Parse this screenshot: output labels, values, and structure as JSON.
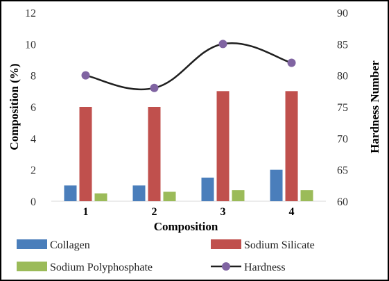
{
  "chart_data": {
    "type": "bar",
    "categories": [
      "1",
      "2",
      "3",
      "4"
    ],
    "xlabel": "Composition",
    "ylabel": "Composition (%)",
    "y2label": "Hardness Number",
    "ylim": [
      0,
      12
    ],
    "yticks": [
      "0",
      "2",
      "4",
      "6",
      "8",
      "10",
      "12"
    ],
    "y2lim": [
      60,
      90
    ],
    "y2ticks": [
      "60",
      "65",
      "70",
      "75",
      "80",
      "85",
      "90"
    ],
    "grid": false,
    "legend_position": "bottom",
    "series": [
      {
        "name": "Collagen",
        "type": "bar",
        "axis": "left",
        "color": "#4a7ebb",
        "values": [
          1,
          1,
          1.5,
          2
        ]
      },
      {
        "name": "Sodium Silicate",
        "type": "bar",
        "axis": "left",
        "color": "#c0504d",
        "values": [
          6,
          6,
          7,
          7
        ]
      },
      {
        "name": "Sodium Polyphosphate",
        "type": "bar",
        "axis": "left",
        "color": "#9bbb59",
        "values": [
          0.5,
          0.6,
          0.7,
          0.7
        ]
      },
      {
        "name": "Hardness",
        "type": "line",
        "axis": "right",
        "color": "#1f1f1f",
        "marker_color": "#8064a2",
        "values": [
          80,
          78,
          85,
          82
        ]
      }
    ]
  }
}
